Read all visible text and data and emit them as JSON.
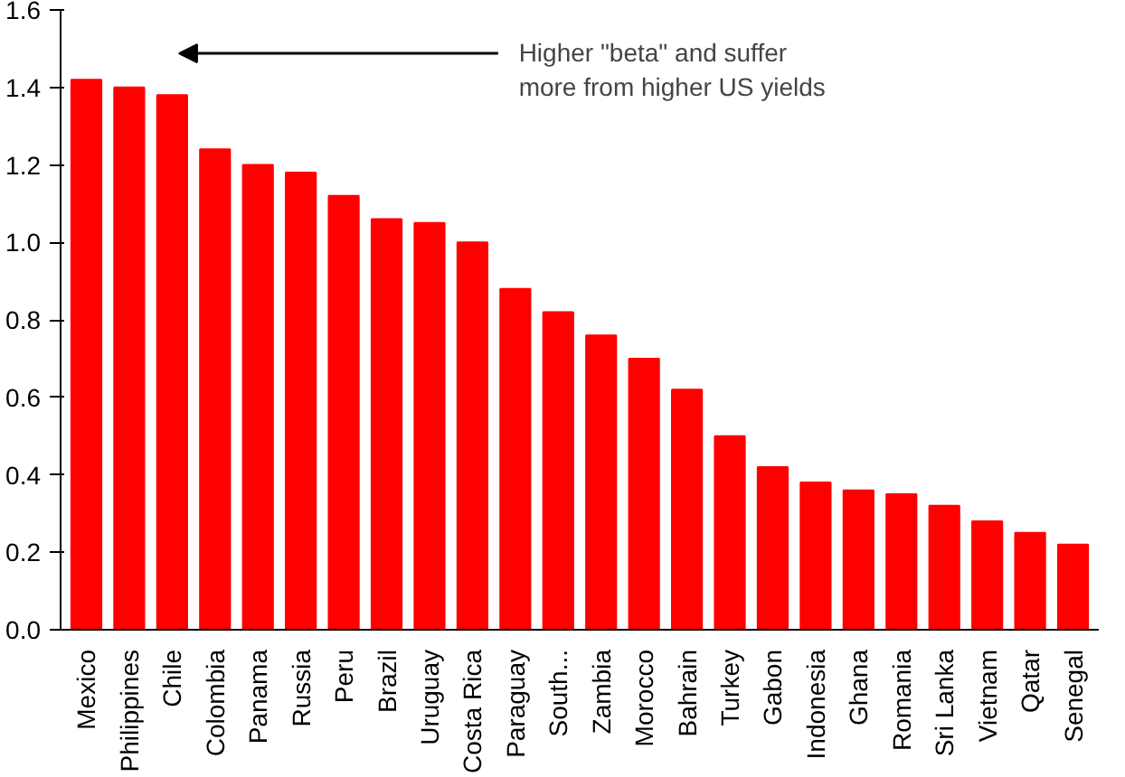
{
  "chart_data": {
    "type": "bar",
    "categories": [
      "Mexico",
      "Philippines",
      "Chile",
      "Colombia",
      "Panama",
      "Russia",
      "Peru",
      "Brazil",
      "Uruguay",
      "Costa Rica",
      "Paraguay",
      "South...",
      "Zambia",
      "Morocco",
      "Bahrain",
      "Turkey",
      "Gabon",
      "Indonesia",
      "Ghana",
      "Romania",
      "Sri Lanka",
      "Vietnam",
      "Qatar",
      "Senegal"
    ],
    "values": [
      1.42,
      1.4,
      1.38,
      1.24,
      1.2,
      1.18,
      1.12,
      1.06,
      1.05,
      1.0,
      0.88,
      0.82,
      0.76,
      0.7,
      0.62,
      0.5,
      0.42,
      0.38,
      0.36,
      0.35,
      0.32,
      0.28,
      0.25,
      0.22
    ],
    "color": "#ff0000",
    "ylim": [
      0,
      1.6
    ],
    "yticks": [
      {
        "value": 0,
        "label": "0.0"
      },
      {
        "value": 0.2,
        "label": "0.2"
      },
      {
        "value": 0.4,
        "label": "0.4"
      },
      {
        "value": 0.6,
        "label": "0.6"
      },
      {
        "value": 0.8,
        "label": "0.8"
      },
      {
        "value": 1,
        "label": "1.0"
      },
      {
        "value": 1.2,
        "label": "1.2"
      },
      {
        "value": 1.4,
        "label": "1.4"
      },
      {
        "value": 1.6,
        "label": "1.6"
      }
    ],
    "grid": false,
    "annotations": [
      "Higher \"beta\" and suffer more from higher US yields"
    ]
  }
}
